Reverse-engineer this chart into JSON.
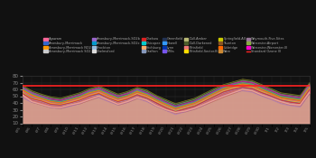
{
  "title": "",
  "ylabel": "",
  "xlabel": "",
  "ylim": [
    10,
    80
  ],
  "red_line_y": 65,
  "n_days": 31,
  "legend_entries": [
    {
      "label": "Agawam",
      "color": "#FF6699"
    },
    {
      "label": "Amesbury-Merrimack",
      "color": "#3366CC"
    },
    {
      "label": "Amesbury-Merrimack NO2",
      "color": "#FF9900"
    },
    {
      "label": "Amesbury-Merrimack SO2",
      "color": "#CCCCCC"
    },
    {
      "label": "Amesbury-Merrimack-SO2b",
      "color": "#9966CC"
    },
    {
      "label": "Amesbury-Merrimack-SO2c",
      "color": "#0099CC"
    },
    {
      "label": "Brockton",
      "color": "#99BBDD"
    },
    {
      "label": "Chelmsford",
      "color": "#DDDDDD"
    },
    {
      "label": "Chelsea",
      "color": "#DD2222"
    },
    {
      "label": "Chicopee",
      "color": "#00CCCC"
    },
    {
      "label": "Fitchburg",
      "color": "#FFAA66"
    },
    {
      "label": "Grafton",
      "color": "#8899BB"
    },
    {
      "label": "Greenfield",
      "color": "#223355"
    },
    {
      "label": "Howell",
      "color": "#3399FF"
    },
    {
      "label": "Lynn",
      "color": "#0033AA"
    },
    {
      "label": "Millis",
      "color": "#7755EE"
    },
    {
      "label": "Dull-Amber",
      "color": "#BBBB77"
    },
    {
      "label": "Dull-Darkened",
      "color": "#4D5E2A"
    },
    {
      "label": "Pittsfield",
      "color": "#EE7777"
    },
    {
      "label": "Pittsfield-Sector-B",
      "color": "#FFDD00"
    },
    {
      "label": "Springfield-All",
      "color": "#CCCC00"
    },
    {
      "label": "Taunton",
      "color": "#885522"
    },
    {
      "label": "Uxbridge",
      "color": "#FF6600"
    },
    {
      "label": "Ware",
      "color": "#CC8833"
    },
    {
      "label": "Weymouth-Five-Sites",
      "color": "#997799"
    },
    {
      "label": "Worcester-Airport",
      "color": "#88AA44"
    },
    {
      "label": "Worcester-Worcester-III",
      "color": "#FF00CC"
    }
  ],
  "background_color": "#111111",
  "plot_bg_color": "#111111",
  "tick_label_color": "#888888",
  "grid_color": "#333333",
  "baseline_color": "#E8A898",
  "baseline_alpha": 0.9,
  "red_line_color": "#FF2222",
  "yticks": [
    10,
    20,
    30,
    40,
    50,
    60,
    70,
    80
  ],
  "baseline_data": [
    52,
    42,
    38,
    34,
    33,
    37,
    40,
    45,
    50,
    44,
    38,
    42,
    48,
    44,
    36,
    30,
    26,
    28,
    32,
    38,
    44,
    50,
    55,
    60,
    58,
    52,
    47,
    42,
    38,
    37,
    56
  ],
  "series": [
    {
      "color": "#FF6699",
      "alpha": 0.7,
      "lw": 0.8,
      "data": [
        58,
        50,
        45,
        40,
        38,
        42,
        46,
        52,
        56,
        50,
        44,
        48,
        54,
        50,
        42,
        36,
        30,
        34,
        38,
        44,
        52,
        58,
        62,
        66,
        64,
        58,
        52,
        46,
        44,
        42,
        62
      ]
    },
    {
      "color": "#3366CC",
      "alpha": 0.6,
      "lw": 0.7,
      "data": [
        55,
        48,
        43,
        38,
        37,
        40,
        44,
        50,
        53,
        47,
        42,
        46,
        52,
        47,
        40,
        34,
        28,
        32,
        36,
        42,
        50,
        56,
        60,
        63,
        62,
        55,
        50,
        44,
        42,
        40,
        60
      ]
    },
    {
      "color": "#FF9900",
      "alpha": 0.7,
      "lw": 0.8,
      "data": [
        60,
        52,
        47,
        42,
        40,
        44,
        48,
        55,
        58,
        52,
        46,
        50,
        57,
        52,
        44,
        38,
        32,
        36,
        40,
        47,
        54,
        61,
        65,
        68,
        66,
        60,
        54,
        48,
        46,
        44,
        64
      ]
    },
    {
      "color": "#00CCCC",
      "alpha": 0.6,
      "lw": 0.7,
      "data": [
        62,
        54,
        49,
        44,
        42,
        46,
        50,
        57,
        60,
        54,
        48,
        52,
        59,
        54,
        46,
        40,
        34,
        38,
        42,
        49,
        56,
        63,
        67,
        70,
        68,
        62,
        56,
        50,
        48,
        46,
        66
      ]
    },
    {
      "color": "#FFCC00",
      "alpha": 0.7,
      "lw": 0.8,
      "data": [
        56,
        47,
        44,
        39,
        38,
        41,
        45,
        51,
        55,
        48,
        43,
        47,
        54,
        49,
        42,
        35,
        29,
        33,
        37,
        44,
        51,
        58,
        62,
        65,
        63,
        57,
        52,
        46,
        43,
        41,
        62
      ]
    },
    {
      "color": "#AACCEE",
      "alpha": 0.5,
      "lw": 0.6,
      "data": [
        53,
        45,
        42,
        37,
        36,
        39,
        43,
        49,
        52,
        46,
        41,
        44,
        51,
        46,
        39,
        33,
        27,
        30,
        34,
        41,
        48,
        55,
        59,
        62,
        60,
        54,
        49,
        43,
        40,
        38,
        59
      ]
    },
    {
      "color": "#88DDAA",
      "alpha": 0.5,
      "lw": 0.6,
      "data": [
        64,
        56,
        51,
        47,
        45,
        49,
        53,
        59,
        63,
        57,
        51,
        55,
        61,
        57,
        49,
        43,
        37,
        41,
        45,
        52,
        59,
        65,
        69,
        73,
        71,
        65,
        59,
        53,
        51,
        49,
        68
      ]
    },
    {
      "color": "#BBBB33",
      "alpha": 0.5,
      "lw": 0.6,
      "data": [
        66,
        58,
        53,
        49,
        47,
        51,
        55,
        61,
        65,
        59,
        53,
        57,
        63,
        59,
        51,
        45,
        39,
        43,
        47,
        54,
        61,
        67,
        71,
        75,
        73,
        67,
        61,
        55,
        53,
        51,
        70
      ]
    },
    {
      "color": "#EE7777",
      "alpha": 0.5,
      "lw": 0.6,
      "data": [
        50,
        43,
        40,
        35,
        34,
        37,
        41,
        47,
        50,
        44,
        39,
        43,
        49,
        44,
        37,
        31,
        25,
        29,
        33,
        39,
        46,
        53,
        57,
        60,
        58,
        52,
        47,
        41,
        38,
        36,
        56
      ]
    },
    {
      "color": "#9966CC",
      "alpha": 0.5,
      "lw": 0.6,
      "data": [
        48,
        41,
        38,
        33,
        32,
        35,
        39,
        45,
        48,
        42,
        37,
        41,
        47,
        42,
        35,
        29,
        23,
        27,
        31,
        37,
        44,
        51,
        55,
        58,
        56,
        50,
        45,
        39,
        36,
        34,
        54
      ]
    },
    {
      "color": "#FF6600",
      "alpha": 0.6,
      "lw": 0.7,
      "data": [
        59,
        51,
        46,
        42,
        40,
        44,
        48,
        54,
        58,
        51,
        46,
        50,
        56,
        51,
        44,
        37,
        31,
        35,
        39,
        46,
        53,
        60,
        64,
        67,
        65,
        59,
        53,
        47,
        45,
        43,
        63
      ]
    },
    {
      "color": "#997799",
      "alpha": 0.5,
      "lw": 0.6,
      "data": [
        57,
        49,
        45,
        41,
        39,
        43,
        47,
        53,
        57,
        50,
        45,
        49,
        55,
        50,
        43,
        36,
        30,
        34,
        38,
        45,
        52,
        59,
        63,
        66,
        64,
        58,
        52,
        46,
        44,
        42,
        62
      ]
    },
    {
      "color": "#88AA44",
      "alpha": 0.6,
      "lw": 0.7,
      "data": [
        61,
        53,
        48,
        44,
        42,
        46,
        50,
        56,
        60,
        53,
        48,
        52,
        58,
        53,
        46,
        39,
        33,
        37,
        41,
        48,
        55,
        62,
        66,
        70,
        68,
        62,
        56,
        50,
        48,
        46,
        65
      ]
    },
    {
      "color": "#DD2222",
      "alpha": 0.7,
      "lw": 0.8,
      "data": [
        54,
        46,
        43,
        38,
        37,
        40,
        44,
        50,
        54,
        47,
        42,
        46,
        52,
        47,
        40,
        33,
        27,
        31,
        35,
        42,
        49,
        56,
        60,
        63,
        61,
        55,
        50,
        44,
        41,
        39,
        60
      ]
    },
    {
      "color": "#FF00CC",
      "alpha": 0.6,
      "lw": 0.7,
      "data": [
        63,
        55,
        50,
        46,
        44,
        48,
        52,
        58,
        62,
        55,
        50,
        54,
        60,
        55,
        48,
        41,
        35,
        39,
        43,
        50,
        57,
        64,
        68,
        72,
        70,
        64,
        58,
        52,
        50,
        48,
        67
      ]
    }
  ],
  "dates": [
    "6/5",
    "6/6",
    "6/7",
    "6/8",
    "6/9",
    "6/10",
    "6/11",
    "6/12",
    "6/13",
    "6/14",
    "6/15",
    "6/16",
    "6/17",
    "6/18",
    "6/19",
    "6/20",
    "6/21",
    "6/22",
    "6/23",
    "6/24",
    "6/25",
    "6/26",
    "6/27",
    "6/28",
    "6/29",
    "6/30",
    "7/1",
    "7/2",
    "7/3",
    "7/4",
    "7/5"
  ]
}
